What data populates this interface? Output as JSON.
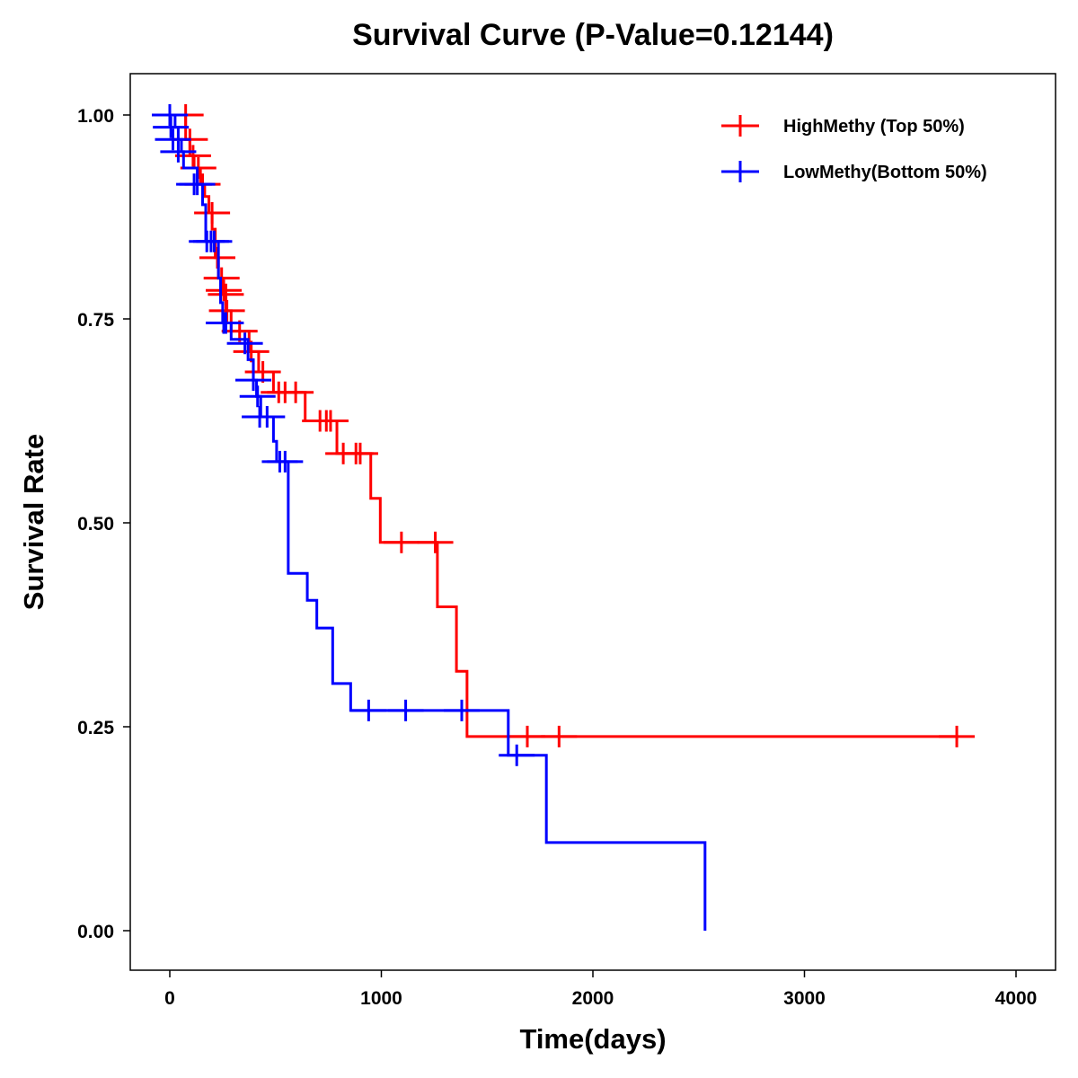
{
  "chart_data": {
    "type": "line",
    "subtype": "kaplan-meier step",
    "title": "Survival Curve (P-Value=0.12144)",
    "xlabel": "Time(days)",
    "ylabel": "Survival Rate",
    "xlim": [
      -200,
      4200
    ],
    "ylim": [
      -0.05,
      1.05
    ],
    "xticks": [
      0,
      1000,
      2000,
      3000,
      4000
    ],
    "xtick_labels": [
      "0",
      "1000",
      "2000",
      "3000",
      "4000"
    ],
    "yticks": [
      0,
      0.25,
      0.5,
      0.75,
      1.0
    ],
    "ytick_labels": [
      "0.00",
      "0.25",
      "0.50",
      "0.75",
      "1.00"
    ],
    "grid": false,
    "legend_position": "top-right",
    "series": [
      {
        "name": "HighMethy (Top 50%)",
        "color": "#FF0000",
        "steps": [
          [
            0,
            1.0
          ],
          [
            75,
            0.97
          ],
          [
            95,
            0.95
          ],
          [
            115,
            0.935
          ],
          [
            145,
            0.915
          ],
          [
            165,
            0.9
          ],
          [
            185,
            0.88
          ],
          [
            200,
            0.86
          ],
          [
            215,
            0.825
          ],
          [
            230,
            0.8
          ],
          [
            250,
            0.78
          ],
          [
            265,
            0.76
          ],
          [
            290,
            0.735
          ],
          [
            375,
            0.71
          ],
          [
            420,
            0.685
          ],
          [
            490,
            0.66
          ],
          [
            640,
            0.625
          ],
          [
            790,
            0.585
          ],
          [
            950,
            0.53
          ],
          [
            995,
            0.476
          ],
          [
            1265,
            0.397
          ],
          [
            1355,
            0.318
          ],
          [
            1405,
            0.238
          ]
        ],
        "end": 3720,
        "censored": [
          [
            75,
            1.0
          ],
          [
            95,
            0.97
          ],
          [
            110,
            0.95
          ],
          [
            135,
            0.935
          ],
          [
            155,
            0.915
          ],
          [
            200,
            0.88
          ],
          [
            225,
            0.825
          ],
          [
            245,
            0.8
          ],
          [
            255,
            0.785
          ],
          [
            265,
            0.78
          ],
          [
            270,
            0.76
          ],
          [
            330,
            0.735
          ],
          [
            385,
            0.71
          ],
          [
            440,
            0.685
          ],
          [
            515,
            0.66
          ],
          [
            545,
            0.66
          ],
          [
            595,
            0.66
          ],
          [
            710,
            0.625
          ],
          [
            740,
            0.625
          ],
          [
            760,
            0.625
          ],
          [
            820,
            0.585
          ],
          [
            880,
            0.585
          ],
          [
            900,
            0.585
          ],
          [
            1095,
            0.476
          ],
          [
            1255,
            0.476
          ],
          [
            1690,
            0.238
          ],
          [
            1840,
            0.238
          ],
          [
            3720,
            0.238
          ]
        ]
      },
      {
        "name": "LowMethy(Bottom 50%)",
        "color": "#0000FF",
        "steps": [
          [
            0,
            1.0
          ],
          [
            25,
            0.985
          ],
          [
            40,
            0.97
          ],
          [
            55,
            0.955
          ],
          [
            65,
            0.935
          ],
          [
            130,
            0.915
          ],
          [
            155,
            0.89
          ],
          [
            170,
            0.845
          ],
          [
            230,
            0.8
          ],
          [
            240,
            0.77
          ],
          [
            250,
            0.745
          ],
          [
            290,
            0.725
          ],
          [
            370,
            0.7
          ],
          [
            395,
            0.675
          ],
          [
            410,
            0.655
          ],
          [
            430,
            0.63
          ],
          [
            490,
            0.6
          ],
          [
            505,
            0.575
          ],
          [
            560,
            0.438
          ],
          [
            650,
            0.405
          ],
          [
            695,
            0.371
          ],
          [
            770,
            0.303
          ],
          [
            855,
            0.27
          ],
          [
            1600,
            0.215
          ],
          [
            1780,
            0.108
          ],
          [
            2530,
            0.0
          ]
        ],
        "end": 2530,
        "censored": [
          [
            0,
            1.0
          ],
          [
            5,
            0.985
          ],
          [
            15,
            0.97
          ],
          [
            40,
            0.955
          ],
          [
            115,
            0.915
          ],
          [
            130,
            0.915
          ],
          [
            175,
            0.845
          ],
          [
            195,
            0.845
          ],
          [
            210,
            0.845
          ],
          [
            255,
            0.745
          ],
          [
            265,
            0.745
          ],
          [
            355,
            0.72
          ],
          [
            395,
            0.675
          ],
          [
            415,
            0.655
          ],
          [
            425,
            0.63
          ],
          [
            460,
            0.63
          ],
          [
            520,
            0.575
          ],
          [
            545,
            0.575
          ],
          [
            940,
            0.27
          ],
          [
            1115,
            0.27
          ],
          [
            1380,
            0.27
          ],
          [
            1640,
            0.215
          ]
        ]
      }
    ]
  }
}
